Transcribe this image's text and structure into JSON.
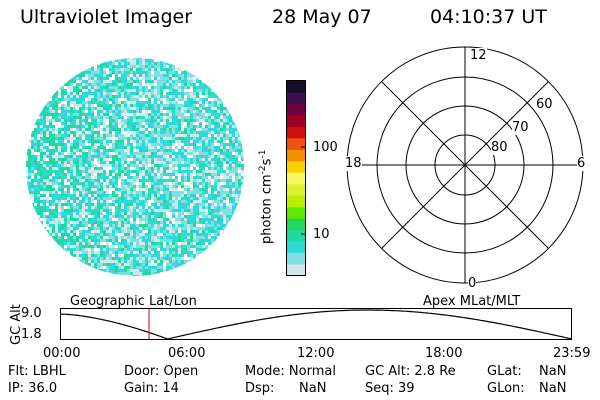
{
  "header": {
    "title": "Ultraviolet Imager",
    "date": "28 May 07",
    "time": "04:10:37 UT"
  },
  "colorbar": {
    "unit_label": "photon cm",
    "unit_exp1": "-2",
    "unit_mid": "s",
    "unit_exp2": "-1",
    "tick_100": "100",
    "tick_10": "10",
    "colors": [
      "#1a0a2a",
      "#3a1050",
      "#700040",
      "#a00020",
      "#d01010",
      "#f05010",
      "#f09000",
      "#f8d000",
      "#f8f860",
      "#e0f030",
      "#b8f000",
      "#60e800",
      "#20d860",
      "#20d8a0",
      "#30d8d8",
      "#80e0e0",
      "#d0e8e8"
    ]
  },
  "polar": {
    "label_top": "12",
    "label_bottom": "0",
    "label_left": "18",
    "label_right": "6",
    "ring_60": "60",
    "ring_70": "70",
    "ring_80": "80"
  },
  "orbit": {
    "left_label": "Geographic Lat/Lon",
    "right_label": "Apex MLat/MLT",
    "axis_label": "GC Alt",
    "ytick_top": "9.0",
    "ytick_bottom": "1.8",
    "xticks": [
      "00:00",
      "06:00",
      "12:00",
      "18:00",
      "23:59"
    ],
    "marker_time": "04:10:37"
  },
  "info": {
    "flt": "Flt: LBHL",
    "door": "Door: Open",
    "mode": "Mode: Normal",
    "gcalt": "GC Alt: 2.8 Re",
    "glat_label": "GLat:",
    "glat_value": "NaN",
    "ip": "IP: 36.0",
    "gain": "Gain: 14",
    "dsp_label": "Dsp:",
    "dsp_value": "NaN",
    "seq": "Seq: 39",
    "glon_label": "GLon:",
    "glon_value": "NaN"
  }
}
